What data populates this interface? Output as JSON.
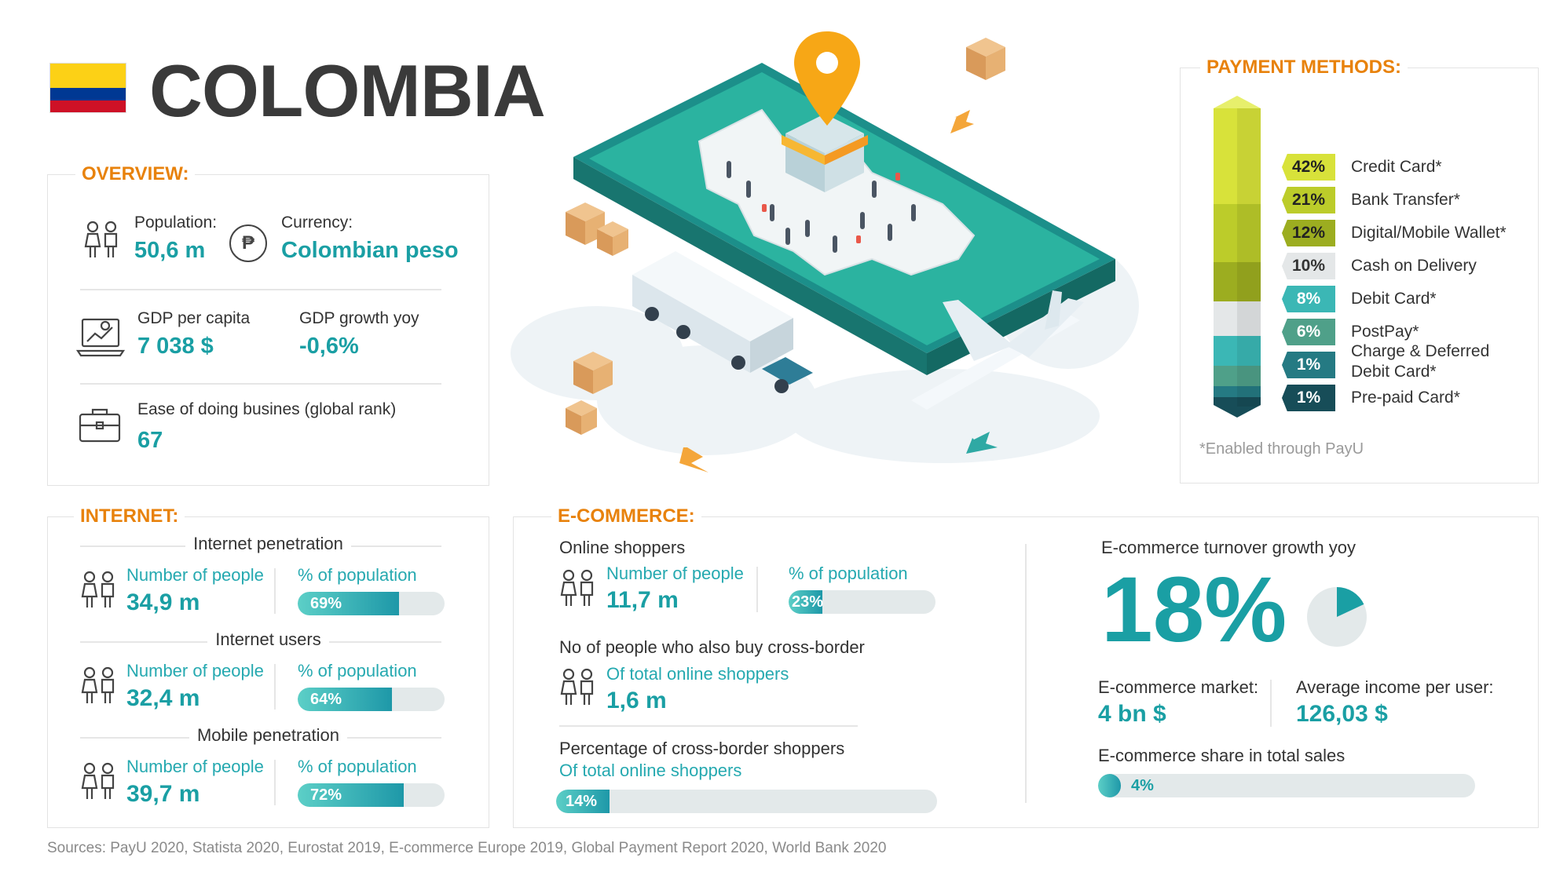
{
  "header": {
    "title": "COLOMBIA"
  },
  "overview": {
    "heading": "OVERVIEW:",
    "population_label": "Population:",
    "population_value": "50,6 m",
    "currency_label": "Currency:",
    "currency_value": "Colombian peso",
    "currency_symbol": "₱",
    "gdp_label": "GDP per capita",
    "gdp_value": "7 038 $",
    "gdp_growth_label": "GDP growth yoy",
    "gdp_growth_value": "-0,6%",
    "ease_label": "Ease of doing busines (global rank)",
    "ease_value": "67"
  },
  "payment": {
    "heading": "PAYMENT METHODS:",
    "note": "*Enabled through PayU",
    "items": [
      {
        "pct": "42%",
        "label": "Credit Card*",
        "color": "#d8e23a"
      },
      {
        "pct": "21%",
        "label": "Bank Transfer*",
        "color": "#bccc2a"
      },
      {
        "pct": "12%",
        "label": "Digital/Mobile Wallet*",
        "color": "#9cad20"
      },
      {
        "pct": "10%",
        "label": "Cash on Delivery",
        "color": "#e4e7e8"
      },
      {
        "pct": "8%",
        "label": "Debit Card*",
        "color": "#3bb7b5"
      },
      {
        "pct": "6%",
        "label": "PostPay*",
        "color": "#4fa089"
      },
      {
        "pct": "1%",
        "label": "Charge & Deferred",
        "label2": "Debit Card*",
        "color": "#257a83"
      },
      {
        "pct": "1%",
        "label": "Pre-paid Card*",
        "color": "#174d58"
      }
    ]
  },
  "internet": {
    "heading": "INTERNET:",
    "sections": [
      {
        "title": "Internet penetration",
        "people_label": "Number of people",
        "people_value": "34,9 m",
        "pop_label": "% of population",
        "pct": 69,
        "pct_text": "69%"
      },
      {
        "title": "Internet users",
        "people_label": "Number of people",
        "people_value": "32,4 m",
        "pop_label": "% of population",
        "pct": 64,
        "pct_text": "64%"
      },
      {
        "title": "Mobile penetration",
        "people_label": "Number of people",
        "people_value": "39,7 m",
        "pop_label": "% of population",
        "pct": 72,
        "pct_text": "72%"
      }
    ]
  },
  "ecommerce": {
    "heading": "E-COMMERCE:",
    "online_title": "Online shoppers",
    "online_people_label": "Number of people",
    "online_people_value": "11,7 m",
    "online_pop_label": "% of population",
    "online_pct": 23,
    "online_pct_text": "23%",
    "cb_title": "No of people who also buy cross-border",
    "cb_label": "Of total online shoppers",
    "cb_value": "1,6 m",
    "cbp_title": "Percentage of cross-border shoppers",
    "cbp_label": "Of total online shoppers",
    "cbp_pct": 14,
    "cbp_pct_text": "14%",
    "growth_label": "E-commerce turnover growth yoy",
    "growth_value": "18%",
    "growth_fraction": 0.18,
    "market_label": "E-commerce market:",
    "market_value": "4 bn $",
    "arpu_label": "Average income per user:",
    "arpu_value": "126,03 $",
    "share_label": "E-commerce share in total sales",
    "share_pct": 4,
    "share_pct_text": "4%"
  },
  "sources": "Sources: PayU 2020, Statista 2020, Eurostat 2019, E-commerce Europe 2019, Global Payment Report 2020, World Bank 2020"
}
